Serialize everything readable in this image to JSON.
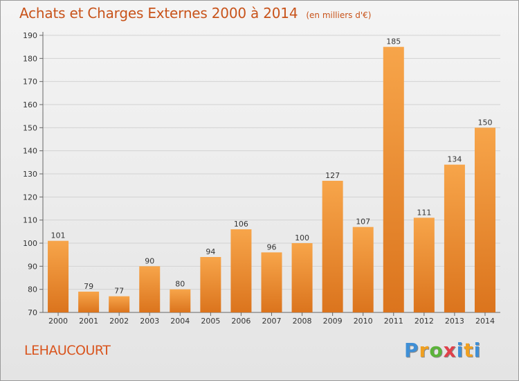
{
  "header": {
    "title": "Achats et Charges Externes 2000 à 2014",
    "unit": "(en milliers d'€)"
  },
  "footer": {
    "commune": "LEHAUCOURT",
    "logo": "Proxiti"
  },
  "colors": {
    "bar_light": "#f7a54a",
    "bar_dark": "#db741d",
    "title": "#c8531a",
    "axis": "#555555"
  },
  "chart_data": {
    "type": "bar",
    "title": "Achats et Charges Externes 2000 à 2014",
    "subtitle": "(en milliers d'€)",
    "xlabel": "",
    "ylabel": "",
    "categories": [
      "2000",
      "2001",
      "2002",
      "2003",
      "2004",
      "2005",
      "2006",
      "2007",
      "2008",
      "2009",
      "2010",
      "2011",
      "2012",
      "2013",
      "2014"
    ],
    "values": [
      101,
      79,
      77,
      90,
      80,
      94,
      106,
      96,
      100,
      127,
      107,
      185,
      111,
      134,
      150
    ],
    "ylim": [
      70,
      190
    ],
    "yticks": [
      70,
      80,
      90,
      100,
      110,
      120,
      130,
      140,
      150,
      160,
      170,
      180,
      190
    ],
    "grid": true,
    "legend": "none"
  }
}
